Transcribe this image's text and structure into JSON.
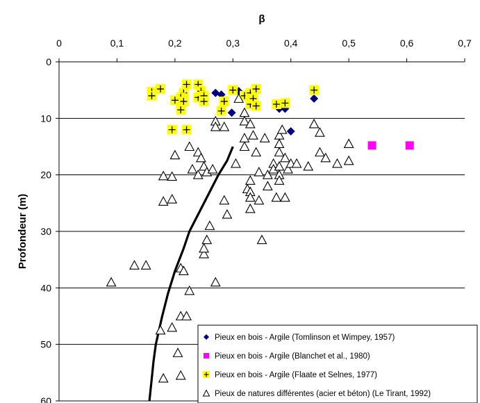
{
  "chart_data": {
    "type": "scatter",
    "xlabel": "β",
    "ylabel": "Profondeur (m)",
    "xlim": [
      0,
      0.7
    ],
    "ylim": [
      60,
      0
    ],
    "x_axis_position": "top",
    "grid": "horizontal",
    "xticks": [
      "0",
      "0,1",
      "0,2",
      "0,3",
      "0,4",
      "0,5",
      "0,6",
      "0,7"
    ],
    "yticks": [
      "0",
      "10",
      "20",
      "30",
      "40",
      "50",
      "60"
    ],
    "legend_position": "bottom-right",
    "series": [
      {
        "name": "Pieux en bois - Argile (Tomlinson et Wimpey, 1957)",
        "marker": "diamond",
        "color": "#000080",
        "points": [
          [
            0.27,
            5.5
          ],
          [
            0.28,
            5.8
          ],
          [
            0.31,
            5.2
          ],
          [
            0.298,
            9
          ],
          [
            0.33,
            7
          ],
          [
            0.38,
            8.3
          ],
          [
            0.39,
            8.3
          ],
          [
            0.4,
            12.3
          ],
          [
            0.44,
            6.5
          ]
        ]
      },
      {
        "name": "Pieux en bois - Argile (Blanchet et al., 1980)",
        "marker": "square",
        "color": "#ff00ff",
        "points": [
          [
            0.54,
            14.8
          ],
          [
            0.605,
            14.8
          ]
        ]
      },
      {
        "name": "Pieux en bois - Argile (Flaate et Selnes, 1977)",
        "marker": "plus-on-square",
        "color": "#ffff00",
        "points": [
          [
            0.16,
            5.3
          ],
          [
            0.16,
            6
          ],
          [
            0.175,
            4.8
          ],
          [
            0.22,
            4
          ],
          [
            0.215,
            5.5
          ],
          [
            0.21,
            6.3
          ],
          [
            0.2,
            6.8
          ],
          [
            0.215,
            7
          ],
          [
            0.21,
            8.5
          ],
          [
            0.195,
            12
          ],
          [
            0.22,
            12
          ],
          [
            0.24,
            4
          ],
          [
            0.24,
            6.3
          ],
          [
            0.245,
            5.2
          ],
          [
            0.25,
            6
          ],
          [
            0.25,
            7
          ],
          [
            0.28,
            8.7
          ],
          [
            0.285,
            7
          ],
          [
            0.3,
            5
          ],
          [
            0.32,
            6
          ],
          [
            0.33,
            5.5
          ],
          [
            0.33,
            7.5
          ],
          [
            0.335,
            6.5
          ],
          [
            0.34,
            7.8
          ],
          [
            0.34,
            4.8
          ],
          [
            0.375,
            7.5
          ],
          [
            0.39,
            7.3
          ],
          [
            0.44,
            5
          ]
        ]
      },
      {
        "name": "Pieux de natures différentes (acier et béton) (Le Tirant, 1992)",
        "marker": "triangle",
        "color": "#000000",
        "points": [
          [
            0.09,
            39
          ],
          [
            0.13,
            36
          ],
          [
            0.15,
            36
          ],
          [
            0.175,
            47.5
          ],
          [
            0.18,
            20.2
          ],
          [
            0.18,
            24.7
          ],
          [
            0.195,
            20.3
          ],
          [
            0.195,
            24.3
          ],
          [
            0.2,
            16.5
          ],
          [
            0.195,
            47
          ],
          [
            0.205,
            51.5
          ],
          [
            0.21,
            45
          ],
          [
            0.21,
            36.5
          ],
          [
            0.22,
            45
          ],
          [
            0.21,
            55.5
          ],
          [
            0.18,
            56
          ],
          [
            0.215,
            37
          ],
          [
            0.225,
            40.5
          ],
          [
            0.225,
            15
          ],
          [
            0.23,
            19
          ],
          [
            0.24,
            16
          ],
          [
            0.24,
            20
          ],
          [
            0.245,
            17
          ],
          [
            0.25,
            18.5
          ],
          [
            0.25,
            34
          ],
          [
            0.25,
            33
          ],
          [
            0.255,
            31.5
          ],
          [
            0.26,
            29
          ],
          [
            0.255,
            19.5
          ],
          [
            0.265,
            19
          ],
          [
            0.27,
            39
          ],
          [
            0.27,
            10.5
          ],
          [
            0.27,
            11.5
          ],
          [
            0.285,
            11.5
          ],
          [
            0.285,
            24.5
          ],
          [
            0.29,
            27
          ],
          [
            0.305,
            18
          ],
          [
            0.31,
            6.5
          ],
          [
            0.32,
            9
          ],
          [
            0.32,
            10.5
          ],
          [
            0.32,
            13.5
          ],
          [
            0.32,
            15
          ],
          [
            0.33,
            11
          ],
          [
            0.325,
            22.5
          ],
          [
            0.33,
            21
          ],
          [
            0.33,
            23
          ],
          [
            0.33,
            24
          ],
          [
            0.335,
            13
          ],
          [
            0.33,
            26
          ],
          [
            0.34,
            16
          ],
          [
            0.345,
            19.5
          ],
          [
            0.345,
            24.5
          ],
          [
            0.35,
            31.5
          ],
          [
            0.355,
            13.5
          ],
          [
            0.36,
            20
          ],
          [
            0.36,
            22
          ],
          [
            0.37,
            18
          ],
          [
            0.37,
            19
          ],
          [
            0.375,
            24
          ],
          [
            0.38,
            13
          ],
          [
            0.38,
            14.5
          ],
          [
            0.38,
            16
          ],
          [
            0.38,
            18.5
          ],
          [
            0.38,
            20
          ],
          [
            0.38,
            21
          ],
          [
            0.385,
            12
          ],
          [
            0.39,
            17
          ],
          [
            0.39,
            24
          ],
          [
            0.395,
            19
          ],
          [
            0.4,
            18
          ],
          [
            0.41,
            18
          ],
          [
            0.43,
            18.5
          ],
          [
            0.44,
            11
          ],
          [
            0.45,
            12.5
          ],
          [
            0.45,
            16
          ],
          [
            0.46,
            17
          ],
          [
            0.48,
            18
          ],
          [
            0.5,
            14.5
          ],
          [
            0.5,
            17.5
          ]
        ]
      }
    ],
    "curve": {
      "color": "#000000",
      "points": [
        [
          0.3,
          15
        ],
        [
          0.29,
          17.5
        ],
        [
          0.275,
          20
        ],
        [
          0.26,
          23
        ],
        [
          0.245,
          26
        ],
        [
          0.225,
          30
        ],
        [
          0.215,
          33
        ],
        [
          0.2,
          37
        ],
        [
          0.188,
          41
        ],
        [
          0.178,
          45
        ],
        [
          0.167,
          50
        ],
        [
          0.163,
          53
        ],
        [
          0.16,
          56
        ],
        [
          0.156,
          60
        ]
      ]
    }
  }
}
